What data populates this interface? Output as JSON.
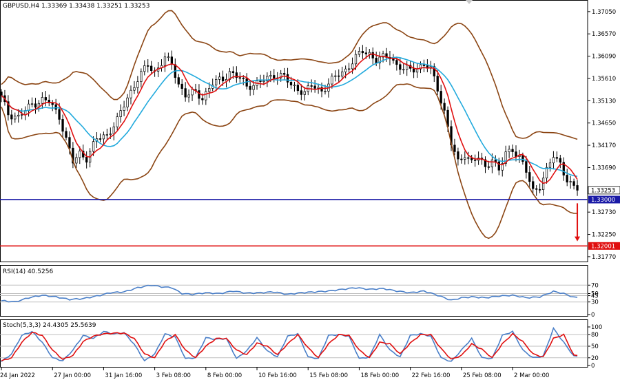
{
  "chart_data": {
    "type": "candlestick",
    "main": {
      "title": "GBPUSD,H4  1.33369 1.33438 1.33251 1.33253",
      "ylim": [
        1.3165,
        1.373
      ],
      "price_ticks": [
        "1.37050",
        "1.36570",
        "1.36090",
        "1.35610",
        "1.35130",
        "1.34650",
        "1.34170",
        "1.33690",
        "1.32730",
        "1.32250",
        "1.31770"
      ],
      "current_price": "1.33253",
      "levels": [
        {
          "label": "1.33000",
          "value": 1.33,
          "color": "#1a1aa6"
        },
        {
          "label": "1.32001",
          "value": 1.32001,
          "color": "#e01010"
        }
      ],
      "arrow": {
        "bar": 169,
        "from": 1.3292,
        "to": 1.321,
        "color": "#e01010"
      },
      "close_path": [
        [
          0,
          1.352
        ],
        [
          2,
          1.3485
        ],
        [
          5,
          1.3478
        ],
        [
          9,
          1.3505
        ],
        [
          12,
          1.3515
        ],
        [
          14,
          1.351
        ],
        [
          17,
          1.348
        ],
        [
          19,
          1.343
        ],
        [
          21,
          1.338
        ],
        [
          23,
          1.34
        ],
        [
          25,
          1.339
        ],
        [
          28,
          1.343
        ],
        [
          31,
          1.344
        ],
        [
          34,
          1.347
        ],
        [
          37,
          1.352
        ],
        [
          40,
          1.356
        ],
        [
          43,
          1.359
        ],
        [
          45,
          1.3575
        ],
        [
          48,
          1.3605
        ],
        [
          50,
          1.359
        ],
        [
          52,
          1.355
        ],
        [
          54,
          1.3525
        ],
        [
          57,
          1.353
        ],
        [
          59,
          1.352
        ],
        [
          62,
          1.355
        ],
        [
          65,
          1.356
        ],
        [
          67,
          1.3575
        ],
        [
          70,
          1.356
        ],
        [
          72,
          1.3545
        ],
        [
          75,
          1.355
        ],
        [
          78,
          1.356
        ],
        [
          80,
          1.357
        ],
        [
          83,
          1.3565
        ],
        [
          85,
          1.3545
        ],
        [
          87,
          1.354
        ],
        [
          89,
          1.353
        ],
        [
          91,
          1.3545
        ],
        [
          94,
          1.3535
        ],
        [
          96,
          1.355
        ],
        [
          99,
          1.357
        ],
        [
          101,
          1.358
        ],
        [
          104,
          1.3605
        ],
        [
          106,
          1.362
        ],
        [
          108,
          1.3615
        ],
        [
          110,
          1.36
        ],
        [
          112,
          1.3605
        ],
        [
          114,
          1.361
        ],
        [
          116,
          1.359
        ],
        [
          118,
          1.358
        ],
        [
          120,
          1.358
        ],
        [
          122,
          1.3585
        ],
        [
          124,
          1.359
        ],
        [
          126,
          1.358
        ],
        [
          128,
          1.354
        ],
        [
          130,
          1.349
        ],
        [
          132,
          1.342
        ],
        [
          134,
          1.338
        ],
        [
          136,
          1.34
        ],
        [
          138,
          1.338
        ],
        [
          140,
          1.339
        ],
        [
          142,
          1.337
        ],
        [
          144,
          1.339
        ],
        [
          146,
          1.336
        ],
        [
          148,
          1.34
        ],
        [
          150,
          1.341
        ],
        [
          152,
          1.339
        ],
        [
          154,
          1.336
        ],
        [
          156,
          1.332
        ],
        [
          158,
          1.333
        ],
        [
          160,
          1.336
        ],
        [
          162,
          1.3395
        ],
        [
          164,
          1.338
        ],
        [
          166,
          1.334
        ],
        [
          167,
          1.333
        ],
        [
          168,
          1.3325
        ]
      ]
    },
    "bands_style": {
      "bollinger_color": "#8b4513",
      "ma_fast_color": "#e01010",
      "ma_slow_color": "#22aadd"
    },
    "x_axis": {
      "labels": [
        {
          "text": "24 Jan 2022",
          "bar": 0
        },
        {
          "text": "27 Jan 00:00",
          "bar": 15
        },
        {
          "text": "31 Jan 16:00",
          "bar": 30
        },
        {
          "text": "3 Feb 08:00",
          "bar": 45
        },
        {
          "text": "8 Feb 00:00",
          "bar": 60
        },
        {
          "text": "10 Feb 16:00",
          "bar": 75
        },
        {
          "text": "15 Feb 08:00",
          "bar": 90
        },
        {
          "text": "18 Feb 00:00",
          "bar": 105
        },
        {
          "text": "22 Feb 16:00",
          "bar": 120
        },
        {
          "text": "25 Feb 08:00",
          "bar": 135
        },
        {
          "text": "2 Mar 00:00",
          "bar": 150
        }
      ]
    },
    "rsi": {
      "title": "RSI(14) 40.5256",
      "ylim": [
        0,
        100
      ],
      "ticks": [
        "70",
        "50",
        "45",
        "30",
        "0"
      ],
      "levels": [
        70,
        50,
        45,
        30
      ],
      "color": "#4a7fc8",
      "path": [
        [
          0,
          33
        ],
        [
          4,
          30
        ],
        [
          8,
          40
        ],
        [
          12,
          46
        ],
        [
          16,
          42
        ],
        [
          20,
          36
        ],
        [
          24,
          38
        ],
        [
          28,
          44
        ],
        [
          32,
          52
        ],
        [
          36,
          54
        ],
        [
          40,
          64
        ],
        [
          44,
          70
        ],
        [
          47,
          66
        ],
        [
          50,
          64
        ],
        [
          53,
          50
        ],
        [
          56,
          48
        ],
        [
          60,
          52
        ],
        [
          64,
          50
        ],
        [
          68,
          56
        ],
        [
          72,
          51
        ],
        [
          76,
          52
        ],
        [
          80,
          54
        ],
        [
          84,
          48
        ],
        [
          88,
          52
        ],
        [
          92,
          54
        ],
        [
          96,
          56
        ],
        [
          100,
          60
        ],
        [
          104,
          64
        ],
        [
          108,
          60
        ],
        [
          112,
          62
        ],
        [
          116,
          56
        ],
        [
          120,
          52
        ],
        [
          124,
          56
        ],
        [
          128,
          46
        ],
        [
          132,
          34
        ],
        [
          135,
          40
        ],
        [
          138,
          42
        ],
        [
          142,
          40
        ],
        [
          146,
          44
        ],
        [
          150,
          46
        ],
        [
          154,
          40
        ],
        [
          158,
          42
        ],
        [
          162,
          55
        ],
        [
          165,
          50
        ],
        [
          168,
          41
        ]
      ]
    },
    "stoch": {
      "title": "Stoch(5,3,3) 24.4305 25.5639",
      "ylim": [
        0,
        100
      ],
      "ticks": [
        "100",
        "80",
        "50",
        "20",
        "0"
      ],
      "levels": [
        80,
        50,
        20
      ],
      "main_color": "#4a7fc8",
      "signal_color": "#e01010",
      "main": [
        [
          0,
          10
        ],
        [
          3,
          30
        ],
        [
          6,
          78
        ],
        [
          9,
          88
        ],
        [
          12,
          60
        ],
        [
          15,
          20
        ],
        [
          18,
          12
        ],
        [
          21,
          40
        ],
        [
          24,
          78
        ],
        [
          27,
          70
        ],
        [
          30,
          88
        ],
        [
          33,
          82
        ],
        [
          36,
          85
        ],
        [
          39,
          55
        ],
        [
          42,
          12
        ],
        [
          45,
          30
        ],
        [
          48,
          82
        ],
        [
          51,
          74
        ],
        [
          54,
          18
        ],
        [
          57,
          20
        ],
        [
          60,
          72
        ],
        [
          63,
          68
        ],
        [
          66,
          70
        ],
        [
          69,
          18
        ],
        [
          72,
          38
        ],
        [
          75,
          72
        ],
        [
          78,
          38
        ],
        [
          81,
          22
        ],
        [
          84,
          76
        ],
        [
          87,
          82
        ],
        [
          90,
          22
        ],
        [
          93,
          18
        ],
        [
          96,
          78
        ],
        [
          99,
          80
        ],
        [
          102,
          76
        ],
        [
          105,
          18
        ],
        [
          108,
          22
        ],
        [
          111,
          80
        ],
        [
          114,
          40
        ],
        [
          117,
          22
        ],
        [
          120,
          78
        ],
        [
          123,
          82
        ],
        [
          126,
          76
        ],
        [
          129,
          20
        ],
        [
          132,
          10
        ],
        [
          135,
          40
        ],
        [
          138,
          70
        ],
        [
          141,
          20
        ],
        [
          144,
          18
        ],
        [
          147,
          78
        ],
        [
          150,
          88
        ],
        [
          153,
          40
        ],
        [
          156,
          20
        ],
        [
          159,
          24
        ],
        [
          162,
          96
        ],
        [
          165,
          60
        ],
        [
          168,
          24
        ]
      ],
      "signal": [
        [
          0,
          12
        ],
        [
          3,
          20
        ],
        [
          6,
          60
        ],
        [
          9,
          86
        ],
        [
          12,
          78
        ],
        [
          15,
          40
        ],
        [
          18,
          16
        ],
        [
          21,
          26
        ],
        [
          24,
          62
        ],
        [
          27,
          76
        ],
        [
          30,
          82
        ],
        [
          33,
          84
        ],
        [
          36,
          84
        ],
        [
          39,
          70
        ],
        [
          42,
          30
        ],
        [
          45,
          20
        ],
        [
          48,
          62
        ],
        [
          51,
          80
        ],
        [
          54,
          40
        ],
        [
          57,
          20
        ],
        [
          60,
          50
        ],
        [
          63,
          70
        ],
        [
          66,
          70
        ],
        [
          69,
          40
        ],
        [
          72,
          28
        ],
        [
          75,
          58
        ],
        [
          78,
          50
        ],
        [
          81,
          28
        ],
        [
          84,
          56
        ],
        [
          87,
          80
        ],
        [
          90,
          46
        ],
        [
          93,
          20
        ],
        [
          96,
          56
        ],
        [
          99,
          80
        ],
        [
          102,
          78
        ],
        [
          105,
          40
        ],
        [
          108,
          20
        ],
        [
          111,
          60
        ],
        [
          114,
          56
        ],
        [
          117,
          30
        ],
        [
          120,
          58
        ],
        [
          123,
          80
        ],
        [
          126,
          80
        ],
        [
          129,
          44
        ],
        [
          132,
          16
        ],
        [
          135,
          26
        ],
        [
          138,
          56
        ],
        [
          141,
          42
        ],
        [
          144,
          20
        ],
        [
          147,
          56
        ],
        [
          150,
          82
        ],
        [
          153,
          62
        ],
        [
          156,
          30
        ],
        [
          159,
          22
        ],
        [
          162,
          70
        ],
        [
          165,
          80
        ],
        [
          168,
          26
        ]
      ]
    }
  }
}
